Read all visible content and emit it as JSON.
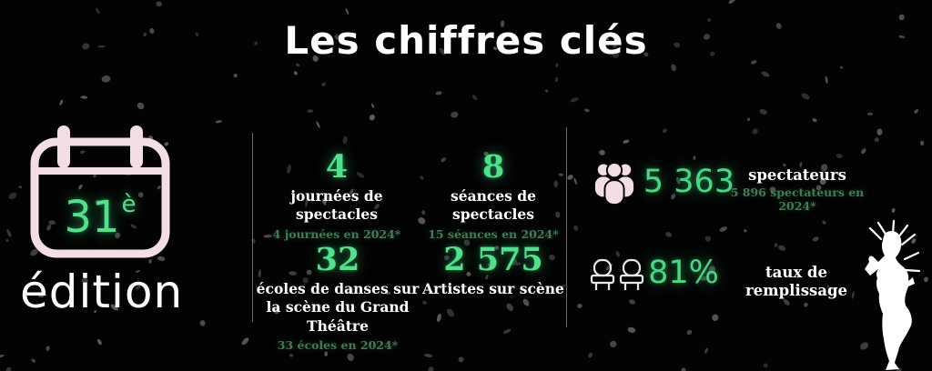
{
  "title": "Les chiffres clés",
  "edition": {
    "number": "31",
    "suffix": "è",
    "label": "édition"
  },
  "stats": [
    {
      "value": "4",
      "label": "journées de spectacles",
      "note": "4 journées en 2024*"
    },
    {
      "value": "8",
      "label": "séances de spectacles",
      "note": "15 séances en 2024*"
    },
    {
      "value": "32",
      "label": "écoles de danses sur la scène du Grand Théâtre",
      "note": "33 écoles en 2024*"
    },
    {
      "value": "2 575",
      "label": "Artistes sur scène",
      "note": ""
    }
  ],
  "audience": [
    {
      "icon": "people-group-icon",
      "value": "5 363",
      "label": "spectateurs",
      "note": "5 896 spectateurs en 2024*"
    },
    {
      "icon": "theater-seats-icon",
      "value": "81%",
      "label": "taux de remplissage",
      "note": ""
    }
  ],
  "icons": [
    "calendar-icon",
    "people-group-icon",
    "theater-seats-icon",
    "dancer-silhouette"
  ],
  "colors": {
    "background": "#030303",
    "accent_green": "#4ee28c",
    "dim_green": "#3f7d56",
    "icon_pink": "#f3dde7",
    "text_white": "#ffffff",
    "divider_gray": "#8a8a8a"
  }
}
